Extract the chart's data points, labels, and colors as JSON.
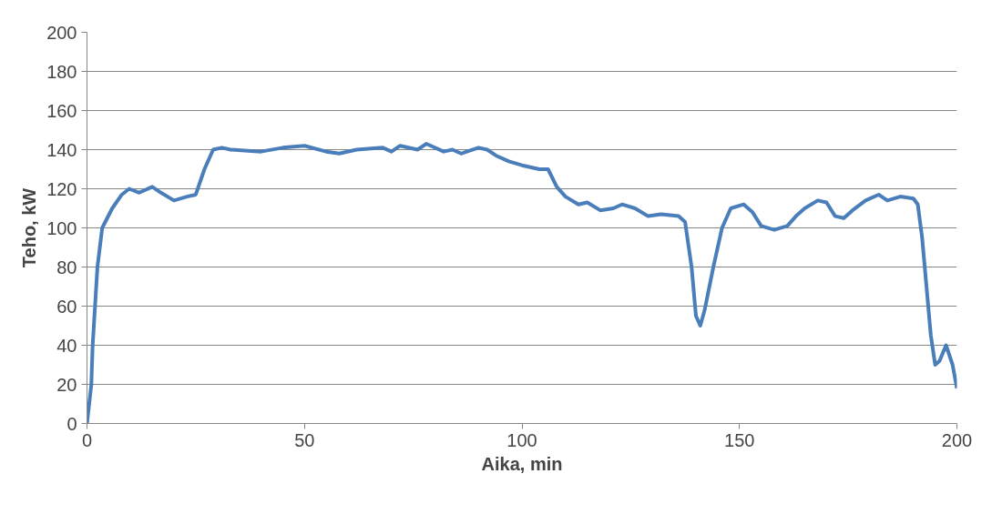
{
  "chart_data": {
    "type": "line",
    "xlabel": "Aika, min",
    "ylabel": "Teho, kW",
    "xlim": [
      0,
      200
    ],
    "xticks": [
      0,
      50,
      100,
      150,
      200
    ],
    "ylim": [
      0,
      200
    ],
    "yticks": [
      0,
      20,
      40,
      60,
      80,
      100,
      120,
      140,
      160,
      180,
      200
    ],
    "grid": "y",
    "marker": "none",
    "line_style": "solid",
    "series": [
      {
        "color": "#4a7ebb",
        "x": [
          0,
          1,
          1.3,
          2.4,
          3.5,
          5.8,
          8,
          9.7,
          12,
          15,
          17,
          20,
          23,
          25,
          27,
          29,
          31,
          33,
          40,
          45,
          50,
          55,
          58,
          62,
          68,
          70,
          72,
          76,
          78,
          82,
          84,
          86,
          90,
          92,
          94,
          97,
          100,
          104,
          106,
          108,
          110,
          113,
          115,
          118,
          121,
          123,
          126,
          129,
          132,
          136,
          137.5,
          139,
          140,
          141,
          142,
          144,
          146,
          148,
          151,
          153,
          155,
          158,
          161,
          163,
          165,
          168,
          170,
          172,
          174,
          176,
          179,
          182,
          184,
          187,
          190,
          191,
          192,
          193,
          194,
          195,
          196,
          197.5,
          199,
          200
        ],
        "values": [
          0,
          20,
          40,
          80,
          100,
          110,
          117,
          120,
          118,
          121,
          118,
          114,
          116,
          117,
          130,
          140,
          141,
          140,
          139,
          141,
          142,
          139,
          138,
          140,
          141,
          139,
          142,
          140,
          143,
          139,
          140,
          138,
          141,
          140,
          137,
          134,
          132,
          130,
          130,
          121,
          116,
          112,
          113,
          109,
          110,
          112,
          110,
          106,
          107,
          106,
          103,
          80,
          55,
          50,
          58,
          80,
          100,
          110,
          112,
          108,
          101,
          99,
          101,
          106,
          110,
          114,
          113,
          106,
          105,
          109,
          114,
          117,
          114,
          116,
          115,
          112,
          95,
          70,
          45,
          30,
          32,
          40,
          30,
          18
        ]
      }
    ]
  }
}
